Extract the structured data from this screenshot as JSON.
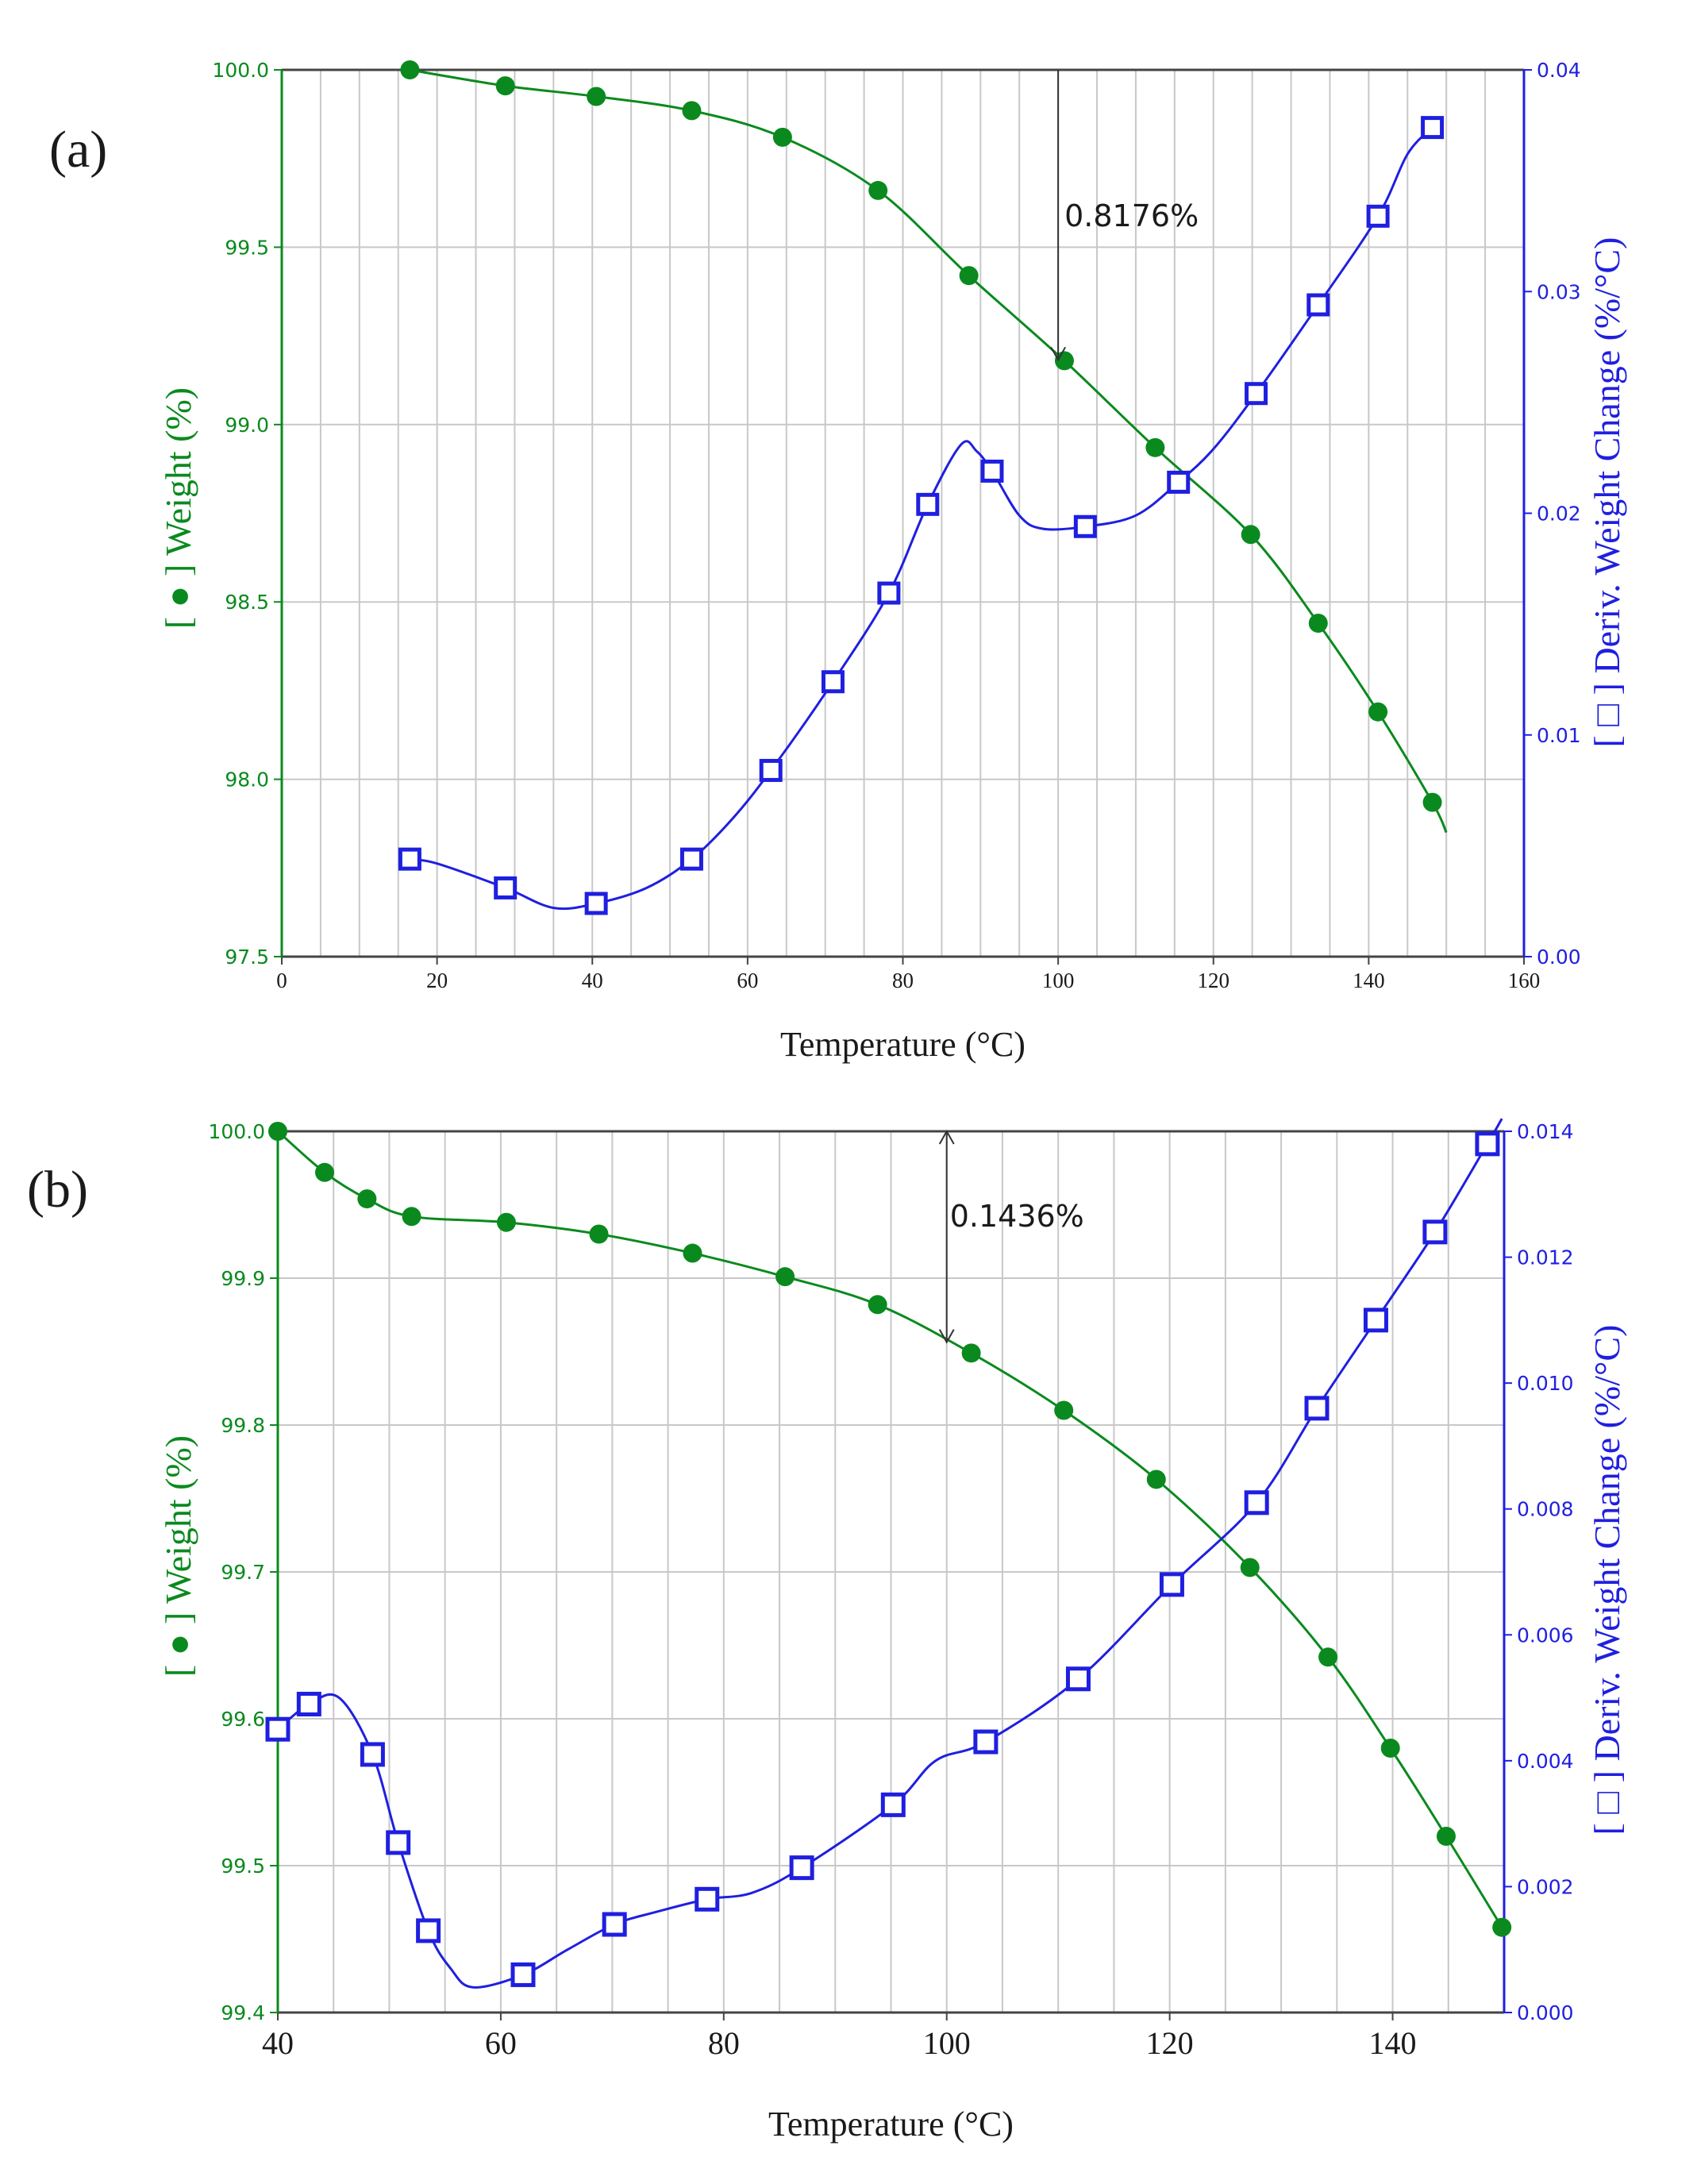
{
  "colors": {
    "weight": "#0a8a1e",
    "deriv": "#1f1fe0",
    "grid": "#c8c8c8",
    "frame": "#444444",
    "arrow": "#333333",
    "text": "#1a1a1a"
  },
  "chart_data": [
    {
      "type": "line",
      "panel_label": "(a)",
      "xlabel": "Temperature (°C)",
      "ylabel_left": "[ ● ] Weight (%)",
      "ylabel_right": "[ □ ] Deriv. Weight Change (%/°C)",
      "xlim": [
        0,
        160
      ],
      "x_ticks": [
        0,
        20,
        40,
        60,
        80,
        100,
        120,
        140,
        160
      ],
      "ylim_left": [
        97.5,
        100.0
      ],
      "y_ticks_left": [
        "97.5",
        "98.0",
        "98.5",
        "99.0",
        "99.5",
        "100.0"
      ],
      "ylim_right": [
        0.0,
        0.04
      ],
      "y_ticks_right": [
        "0.00",
        "0.01",
        "0.02",
        "0.03",
        "0.04"
      ],
      "grid": true,
      "annotation": {
        "label": "0.8176%",
        "x": 100,
        "from": 100.0,
        "to": 99.1824
      },
      "series": [
        {
          "name": "Weight",
          "axis": "left",
          "marker": "filled-circle",
          "x": [
            16.5,
            28.8,
            40.5,
            52.8,
            64.5,
            76.8,
            88.5,
            100.8,
            112.5,
            124.8,
            133.5,
            141.2,
            148.2
          ],
          "values": [
            100.0,
            99.955,
            99.925,
            99.885,
            99.81,
            99.66,
            99.42,
            99.18,
            98.935,
            98.69,
            98.44,
            98.19,
            97.935
          ],
          "curve_x": [
            16.5,
            28.8,
            40.5,
            52.8,
            64.5,
            76.8,
            88.5,
            100.8,
            112.5,
            124.8,
            133.5,
            141.2,
            148.2,
            150
          ],
          "curve_y": [
            100.0,
            99.955,
            99.925,
            99.885,
            99.81,
            99.66,
            99.42,
            99.18,
            98.935,
            98.69,
            98.44,
            98.19,
            97.935,
            97.85
          ]
        },
        {
          "name": "Deriv. Weight Change",
          "axis": "right",
          "marker": "open-square",
          "x": [
            16.5,
            28.8,
            40.5,
            52.8,
            63.0,
            71.0,
            78.2,
            83.2,
            91.5,
            103.5,
            115.5,
            125.5,
            133.5,
            141.2,
            148.2
          ],
          "values": [
            0.0044,
            0.0031,
            0.0024,
            0.0044,
            0.0084,
            0.0124,
            0.0164,
            0.0204,
            0.0219,
            0.0194,
            0.0214,
            0.0254,
            0.0294,
            0.0334,
            0.0374
          ],
          "curve_x": [
            16.5,
            20,
            28.8,
            35,
            40.5,
            47,
            52.8,
            58,
            63.0,
            71.0,
            78.2,
            83.2,
            87.5,
            89.5,
            91.5,
            95,
            98,
            103.5,
            110,
            115.5,
            120,
            125.5,
            133.5,
            141.2,
            145,
            148.2
          ],
          "curve_y": [
            0.0044,
            0.0042,
            0.0031,
            0.0022,
            0.0024,
            0.0031,
            0.0044,
            0.0062,
            0.0084,
            0.0124,
            0.0164,
            0.0204,
            0.0231,
            0.0228,
            0.0219,
            0.0199,
            0.0193,
            0.0194,
            0.0199,
            0.0214,
            0.0229,
            0.0254,
            0.0294,
            0.0334,
            0.0362,
            0.0374
          ]
        }
      ]
    },
    {
      "type": "line",
      "panel_label": "(b)",
      "xlabel": "Temperature (°C)",
      "ylabel_left": "[ ● ] Weight (%)",
      "ylabel_right": "[ □ ] Deriv. Weight Change (%/°C)",
      "xlim": [
        40,
        150
      ],
      "x_ticks": [
        40,
        60,
        80,
        100,
        120,
        140
      ],
      "ylim_left": [
        99.4,
        100.0
      ],
      "y_ticks_left": [
        "99.4",
        "99.5",
        "99.6",
        "99.7",
        "99.8",
        "99.9",
        "100.0"
      ],
      "ylim_right": [
        0.0,
        0.014
      ],
      "y_ticks_right": [
        "0.000",
        "0.002",
        "0.004",
        "0.006",
        "0.008",
        "0.010",
        "0.012",
        "0.014"
      ],
      "grid": true,
      "annotation": {
        "label": "0.1436%",
        "x": 100,
        "from": 100.0,
        "to": 99.8564
      },
      "series": [
        {
          "name": "Weight",
          "axis": "left",
          "marker": "filled-circle",
          "x": [
            40,
            44.2,
            48.0,
            52.0,
            60.5,
            68.8,
            77.2,
            85.5,
            93.8,
            102.2,
            110.5,
            118.8,
            127.2,
            134.2,
            139.8,
            144.8,
            149.8
          ],
          "values": [
            100.0,
            99.972,
            99.954,
            99.942,
            99.938,
            99.93,
            99.917,
            99.901,
            99.882,
            99.849,
            99.81,
            99.763,
            99.703,
            99.642,
            99.58,
            99.52,
            99.458
          ],
          "curve_x": [
            40,
            44.2,
            48.0,
            52.0,
            60.5,
            68.8,
            77.2,
            85.5,
            93.8,
            102.2,
            110.5,
            118.8,
            127.2,
            134.2,
            139.8,
            144.8,
            149.8
          ],
          "curve_y": [
            100.0,
            99.972,
            99.954,
            99.942,
            99.938,
            99.93,
            99.917,
            99.901,
            99.882,
            99.849,
            99.81,
            99.763,
            99.703,
            99.642,
            99.58,
            99.52,
            99.458
          ]
        },
        {
          "name": "Deriv. Weight Change",
          "axis": "right",
          "marker": "open-square",
          "x": [
            40,
            42.8,
            48.5,
            50.8,
            53.5,
            62.0,
            70.2,
            78.5,
            87.0,
            95.2,
            103.5,
            111.8,
            120.2,
            127.8,
            133.2,
            138.5,
            143.8,
            148.5
          ],
          "values": [
            0.0045,
            0.0049,
            0.0041,
            0.0027,
            0.0013,
            0.0006,
            0.0014,
            0.0018,
            0.0023,
            0.0033,
            0.0043,
            0.0053,
            0.0068,
            0.0081,
            0.0096,
            0.011,
            0.0124,
            0.0138
          ],
          "curve_x": [
            40,
            42.8,
            45.5,
            48.5,
            50.8,
            53.5,
            55.5,
            57.5,
            62.0,
            66,
            70.2,
            74,
            78.5,
            82.5,
            87.0,
            95.2,
            99,
            103.5,
            111.8,
            120.2,
            127.8,
            133.2,
            138.5,
            143.8,
            148.5,
            149.8
          ],
          "curve_y": [
            0.0045,
            0.0049,
            0.005,
            0.0041,
            0.0027,
            0.0013,
            0.0007,
            0.0004,
            0.0006,
            0.001,
            0.0014,
            0.0016,
            0.0018,
            0.0019,
            0.0023,
            0.0033,
            0.004,
            0.0043,
            0.0053,
            0.0068,
            0.0081,
            0.0096,
            0.011,
            0.0124,
            0.0138,
            0.0142
          ]
        }
      ]
    }
  ]
}
